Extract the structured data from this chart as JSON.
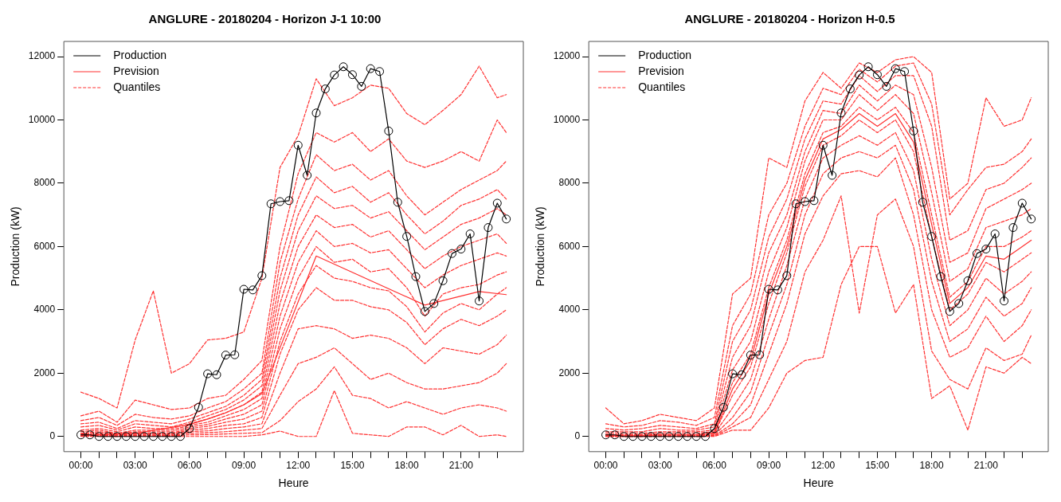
{
  "chart_data": [
    {
      "type": "line",
      "title": "ANGLURE - 20180204 - Horizon J-1 10:00",
      "xlabel": "Heure",
      "ylabel": "Production (kW)",
      "xlim": [
        -0.94,
        24.44
      ],
      "ylim": [
        -480,
        12480
      ],
      "yticks": [
        0,
        2000,
        4000,
        6000,
        8000,
        10000,
        12000
      ],
      "xticks": [
        {
          "value": 0,
          "label": "00:00"
        },
        {
          "value": 1,
          "label": null
        },
        {
          "value": 2,
          "label": null
        },
        {
          "value": 3,
          "label": "03:00"
        },
        {
          "value": 4,
          "label": null
        },
        {
          "value": 5,
          "label": null
        },
        {
          "value": 6,
          "label": "06:00"
        },
        {
          "value": 7,
          "label": null
        },
        {
          "value": 8,
          "label": null
        },
        {
          "value": 9,
          "label": "09:00"
        },
        {
          "value": 10,
          "label": null
        },
        {
          "value": 11,
          "label": null
        },
        {
          "value": 12,
          "label": "12:00"
        },
        {
          "value": 13,
          "label": null
        },
        {
          "value": 14,
          "label": null
        },
        {
          "value": 15,
          "label": "15:00"
        },
        {
          "value": 16,
          "label": null
        },
        {
          "value": 17,
          "label": null
        },
        {
          "value": 18,
          "label": "18:00"
        },
        {
          "value": 19,
          "label": null
        },
        {
          "value": 20,
          "label": null
        },
        {
          "value": 21,
          "label": "21:00"
        },
        {
          "value": 22,
          "label": null
        },
        {
          "value": 23,
          "label": null
        }
      ],
      "grid": false,
      "legend": "top left",
      "x": [
        0,
        1,
        2,
        3,
        4,
        5,
        6,
        7,
        8,
        9,
        10,
        11,
        12,
        13,
        14,
        15,
        16,
        17,
        18,
        19,
        20,
        21,
        22,
        23,
        23.5
      ],
      "series": [
        {
          "name": "Quantiles",
          "color": "#ff3030",
          "line_style": "dashed",
          "marker": "none",
          "values": [
            1400,
            1200,
            900,
            3050,
            4600,
            2000,
            2300,
            3050,
            3100,
            3300,
            5000,
            8500,
            9500,
            11300,
            10450,
            10700,
            11100,
            11000,
            10200,
            9850,
            10300,
            10800,
            11700,
            10700,
            10800
          ]
        },
        {
          "color": "#ff3030",
          "line_style": "dashed",
          "marker": "none",
          "values": [
            650,
            800,
            450,
            1150,
            1000,
            850,
            900,
            1200,
            1300,
            1800,
            2400,
            6000,
            8300,
            9600,
            9300,
            9600,
            9000,
            9400,
            8700,
            8500,
            8700,
            9000,
            8700,
            10000,
            9600
          ]
        },
        {
          "color": "#ff3030",
          "line_style": "dashed",
          "marker": "none",
          "values": [
            500,
            600,
            350,
            700,
            600,
            550,
            650,
            900,
            1100,
            1500,
            2000,
            5500,
            7500,
            8900,
            8400,
            8600,
            8100,
            8400,
            7600,
            7000,
            7400,
            7800,
            8100,
            8400,
            8700
          ]
        },
        {
          "color": "#ff3030",
          "line_style": "dashed",
          "marker": "none",
          "values": [
            400,
            450,
            250,
            500,
            450,
            400,
            550,
            750,
            950,
            1300,
            1800,
            5000,
            7000,
            8200,
            7700,
            7900,
            7400,
            7700,
            7000,
            6400,
            6800,
            7300,
            7500,
            7800,
            7500
          ]
        },
        {
          "color": "#ff3030",
          "line_style": "dashed",
          "marker": "none",
          "values": [
            300,
            350,
            200,
            400,
            350,
            300,
            450,
            650,
            850,
            1150,
            1600,
            4600,
            6500,
            7600,
            7200,
            7300,
            6900,
            7100,
            6500,
            5900,
            6300,
            6700,
            6900,
            7200,
            7000
          ]
        },
        {
          "color": "#ff3030",
          "line_style": "dashed",
          "marker": "none",
          "values": [
            200,
            250,
            150,
            300,
            250,
            250,
            400,
            550,
            750,
            1000,
            1400,
            4200,
            6000,
            7000,
            6600,
            6700,
            6300,
            6500,
            5900,
            5300,
            5700,
            6000,
            6200,
            6400,
            6100
          ]
        },
        {
          "color": "#ff3030",
          "line_style": "dashed",
          "marker": "none",
          "values": [
            150,
            200,
            100,
            200,
            200,
            200,
            350,
            450,
            650,
            850,
            1200,
            3800,
            5500,
            6500,
            6000,
            6100,
            5800,
            5900,
            5300,
            4700,
            5100,
            5400,
            5600,
            5800,
            5700
          ]
        },
        {
          "color": "#ff3030",
          "line_style": "dashed",
          "marker": "none",
          "values": [
            100,
            150,
            80,
            150,
            150,
            150,
            300,
            380,
            550,
            700,
            1000,
            3400,
            5000,
            6000,
            5500,
            5600,
            5200,
            5300,
            4700,
            3800,
            4500,
            4700,
            4800,
            5100,
            5200
          ]
        },
        {
          "color": "#ff3030",
          "line_style": "dashed",
          "marker": "none",
          "values": [
            80,
            100,
            60,
            100,
            100,
            100,
            250,
            320,
            450,
            550,
            800,
            3000,
            4500,
            5400,
            5000,
            4900,
            4700,
            4600,
            4100,
            3300,
            3900,
            4200,
            4000,
            4500,
            4700
          ]
        },
        {
          "color": "#ff3030",
          "line_style": "dashed",
          "marker": "none",
          "values": [
            50,
            80,
            40,
            80,
            80,
            80,
            200,
            250,
            350,
            400,
            600,
            2600,
            4000,
            4700,
            4300,
            4300,
            4100,
            4000,
            3600,
            2900,
            3400,
            3700,
            3500,
            3800,
            4000
          ]
        },
        {
          "color": "#ff3030",
          "line_style": "dashed",
          "marker": "none",
          "values": [
            30,
            50,
            20,
            50,
            50,
            50,
            150,
            180,
            250,
            300,
            400,
            2000,
            3400,
            3500,
            3400,
            3100,
            3200,
            3100,
            2800,
            2300,
            2800,
            2700,
            2600,
            2900,
            3200
          ]
        },
        {
          "color": "#ff3030",
          "line_style": "dashed",
          "marker": "none",
          "values": [
            20,
            30,
            10,
            30,
            30,
            30,
            100,
            120,
            150,
            200,
            250,
            1300,
            2300,
            2500,
            2800,
            2300,
            1800,
            2000,
            1700,
            1500,
            1500,
            1600,
            1700,
            2000,
            2300
          ]
        },
        {
          "color": "#ff3030",
          "line_style": "dashed",
          "marker": "none",
          "values": [
            10,
            20,
            0,
            20,
            20,
            20,
            50,
            60,
            80,
            100,
            120,
            500,
            1100,
            1500,
            2200,
            1300,
            1200,
            900,
            1100,
            900,
            700,
            900,
            1000,
            900,
            800
          ]
        },
        {
          "color": "#ff3030",
          "line_style": "dashed",
          "marker": "none",
          "values": [
            0,
            0,
            0,
            0,
            0,
            0,
            0,
            0,
            0,
            0,
            50,
            170,
            0,
            0,
            1450,
            100,
            50,
            0,
            300,
            300,
            50,
            350,
            0,
            50,
            0
          ]
        },
        {
          "name": "Prevision",
          "color": "#ff3030",
          "line_style": "solid",
          "marker": "none",
          "x": [
            0,
            3,
            6,
            7,
            8,
            9,
            10,
            13,
            19,
            22,
            23.5
          ],
          "values": [
            30,
            100,
            380,
            550,
            750,
            1000,
            1350,
            5700,
            4150,
            4580,
            4480
          ]
        },
        {
          "name": "Production",
          "color": "#000000",
          "line_style": "solid",
          "marker": "circle",
          "x": [
            0,
            0.5,
            1,
            1.5,
            2,
            2.5,
            3,
            3.5,
            4,
            4.5,
            5,
            5.5,
            6,
            6.5,
            7,
            7.5,
            8,
            8.5,
            9,
            9.5,
            10,
            10.5,
            11,
            11.5,
            12,
            12.5,
            13,
            13.5,
            14,
            14.5,
            15,
            15.5,
            16,
            16.5,
            17,
            17.5,
            18,
            18.5,
            19,
            19.5,
            20,
            20.5,
            21,
            21.5,
            22,
            22.5,
            23,
            23.5
          ],
          "values": [
            50,
            50,
            0,
            0,
            0,
            0,
            0,
            0,
            0,
            0,
            0,
            0,
            250,
            920,
            1980,
            1950,
            2570,
            2580,
            4650,
            4630,
            5080,
            7350,
            7420,
            7450,
            9200,
            8250,
            10220,
            10980,
            11420,
            11680,
            11430,
            11060,
            11620,
            11530,
            9650,
            7400,
            6320,
            5050,
            3950,
            4200,
            4920,
            5780,
            5920,
            6400,
            4280,
            6600,
            7370,
            6870
          ]
        }
      ]
    },
    {
      "type": "line",
      "title": "ANGLURE - 20180204 - Horizon H-0.5",
      "xlabel": "Heure",
      "ylabel": "Production (kW)",
      "xlim": [
        -0.94,
        24.44
      ],
      "ylim": [
        -480,
        12480
      ],
      "yticks": [
        0,
        2000,
        4000,
        6000,
        8000,
        10000,
        12000
      ],
      "xticks": [
        {
          "value": 0,
          "label": "00:00"
        },
        {
          "value": 1,
          "label": null
        },
        {
          "value": 2,
          "label": null
        },
        {
          "value": 3,
          "label": "03:00"
        },
        {
          "value": 4,
          "label": null
        },
        {
          "value": 5,
          "label": null
        },
        {
          "value": 6,
          "label": "06:00"
        },
        {
          "value": 7,
          "label": null
        },
        {
          "value": 8,
          "label": null
        },
        {
          "value": 9,
          "label": "09:00"
        },
        {
          "value": 10,
          "label": null
        },
        {
          "value": 11,
          "label": null
        },
        {
          "value": 12,
          "label": "12:00"
        },
        {
          "value": 13,
          "label": null
        },
        {
          "value": 14,
          "label": null
        },
        {
          "value": 15,
          "label": "15:00"
        },
        {
          "value": 16,
          "label": null
        },
        {
          "value": 17,
          "label": null
        },
        {
          "value": 18,
          "label": "18:00"
        },
        {
          "value": 19,
          "label": null
        },
        {
          "value": 20,
          "label": null
        },
        {
          "value": 21,
          "label": "21:00"
        },
        {
          "value": 22,
          "label": null
        },
        {
          "value": 23,
          "label": null
        }
      ],
      "grid": false,
      "legend": "top left",
      "x": [
        0,
        1,
        2,
        3,
        4,
        5,
        6,
        7,
        8,
        9,
        10,
        11,
        12,
        13,
        14,
        15,
        16,
        17,
        18,
        19,
        20,
        21,
        22,
        23,
        23.5
      ],
      "series": [
        {
          "name": "Quantiles",
          "color": "#ff3030",
          "line_style": "dashed",
          "marker": "none",
          "values": [
            900,
            400,
            500,
            700,
            600,
            500,
            900,
            4500,
            5000,
            8800,
            8500,
            10600,
            11500,
            11000,
            11800,
            11500,
            11900,
            12000,
            11500,
            7500,
            8000,
            10700,
            9800,
            10000,
            10700
          ]
        },
        {
          "color": "#ff3030",
          "line_style": "dashed",
          "marker": "none",
          "values": [
            400,
            300,
            350,
            500,
            450,
            350,
            600,
            3500,
            4500,
            7000,
            8000,
            9800,
            11000,
            10800,
            11600,
            11200,
            11700,
            11800,
            10500,
            7000,
            7800,
            8500,
            8600,
            9000,
            9400
          ]
        },
        {
          "color": "#ff3030",
          "line_style": "dashed",
          "marker": "none",
          "values": [
            250,
            200,
            250,
            350,
            300,
            250,
            400,
            3000,
            4000,
            6300,
            7500,
            9400,
            10600,
            10500,
            11400,
            10900,
            11400,
            11400,
            9800,
            6200,
            6500,
            7800,
            8000,
            8500,
            8800
          ]
        },
        {
          "color": "#ff3030",
          "line_style": "dashed",
          "marker": "none",
          "values": [
            150,
            150,
            150,
            250,
            200,
            200,
            300,
            2500,
            3500,
            5800,
            7000,
            9000,
            10300,
            10200,
            11100,
            10600,
            11100,
            10800,
            8500,
            5500,
            5800,
            7200,
            7500,
            7800,
            8000
          ]
        },
        {
          "color": "#ff3030",
          "line_style": "dashed",
          "marker": "none",
          "values": [
            100,
            100,
            100,
            150,
            150,
            150,
            200,
            2100,
            3000,
            5200,
            6600,
            8700,
            10000,
            10000,
            10800,
            10300,
            10800,
            10200,
            7700,
            4900,
            5300,
            6600,
            6800,
            7000,
            7200
          ]
        },
        {
          "color": "#ff3030",
          "line_style": "dashed",
          "marker": "none",
          "values": [
            60,
            60,
            60,
            100,
            100,
            100,
            150,
            1700,
            2600,
            4700,
            6200,
            8300,
            9600,
            9800,
            10400,
            10000,
            10400,
            9600,
            7000,
            4400,
            4900,
            6000,
            6000,
            6300,
            6500
          ]
        },
        {
          "color": "#ff3030",
          "line_style": "dashed",
          "marker": "none",
          "values": [
            40,
            40,
            40,
            60,
            60,
            60,
            100,
            1300,
            2200,
            4200,
            5800,
            7900,
            9200,
            9500,
            10000,
            9600,
            10000,
            9000,
            6300,
            4000,
            4500,
            5500,
            5200,
            5600,
            5800
          ]
        },
        {
          "color": "#ff3030",
          "line_style": "dashed",
          "marker": "none",
          "values": [
            20,
            20,
            20,
            40,
            40,
            40,
            80,
            900,
            1800,
            3700,
            5400,
            7500,
            8800,
            9200,
            9500,
            9200,
            9600,
            8400,
            5600,
            3500,
            4000,
            5000,
            4500,
            4900,
            5200
          ]
        },
        {
          "color": "#ff3030",
          "line_style": "dashed",
          "marker": "none",
          "values": [
            10,
            10,
            10,
            20,
            20,
            20,
            50,
            600,
            1400,
            3200,
            4800,
            7000,
            8300,
            8800,
            9000,
            8800,
            9200,
            7800,
            4900,
            3000,
            3400,
            4400,
            3800,
            4200,
            4700
          ]
        },
        {
          "color": "#ff3030",
          "line_style": "dashed",
          "marker": "none",
          "values": [
            0,
            0,
            0,
            10,
            10,
            10,
            30,
            400,
            1000,
            2600,
            4200,
            6400,
            7600,
            8300,
            8400,
            8200,
            8800,
            7000,
            4000,
            2500,
            2800,
            3800,
            3000,
            3500,
            4000
          ]
        },
        {
          "color": "#ff3030",
          "line_style": "dashed",
          "marker": "none",
          "values": [
            0,
            0,
            0,
            0,
            0,
            0,
            10,
            300,
            600,
            1800,
            3000,
            5200,
            6200,
            7600,
            3900,
            7000,
            7500,
            6000,
            2700,
            1800,
            1500,
            2800,
            2400,
            2600,
            3200
          ]
        },
        {
          "color": "#ff3030",
          "line_style": "dashed",
          "marker": "none",
          "values": [
            0,
            0,
            0,
            0,
            0,
            0,
            0,
            200,
            200,
            900,
            2000,
            2400,
            2500,
            4800,
            6000,
            6000,
            3900,
            4800,
            1200,
            1600,
            200,
            2200,
            2000,
            2500,
            2300
          ]
        },
        {
          "name": "Prevision",
          "color": "#ff3030",
          "line_style": "solid",
          "marker": "none",
          "values": [
            30,
            20,
            20,
            50,
            50,
            50,
            100,
            1500,
            2400,
            4500,
            6000,
            8100,
            9400,
            9700,
            10200,
            9800,
            10200,
            9300,
            6700,
            4200,
            4700,
            5700,
            5600,
            6000,
            6200
          ]
        },
        {
          "name": "Production",
          "color": "#000000",
          "line_style": "solid",
          "marker": "circle",
          "x": [
            0,
            0.5,
            1,
            1.5,
            2,
            2.5,
            3,
            3.5,
            4,
            4.5,
            5,
            5.5,
            6,
            6.5,
            7,
            7.5,
            8,
            8.5,
            9,
            9.5,
            10,
            10.5,
            11,
            11.5,
            12,
            12.5,
            13,
            13.5,
            14,
            14.5,
            15,
            15.5,
            16,
            16.5,
            17,
            17.5,
            18,
            18.5,
            19,
            19.5,
            20,
            20.5,
            21,
            21.5,
            22,
            22.5,
            23,
            23.5
          ],
          "values": [
            50,
            50,
            0,
            0,
            0,
            0,
            0,
            0,
            0,
            0,
            0,
            0,
            250,
            920,
            1980,
            1950,
            2570,
            2580,
            4650,
            4630,
            5080,
            7350,
            7420,
            7450,
            9200,
            8250,
            10220,
            10980,
            11420,
            11680,
            11430,
            11060,
            11620,
            11530,
            9650,
            7400,
            6320,
            5050,
            3950,
            4200,
            4920,
            5780,
            5920,
            6400,
            4280,
            6600,
            7370,
            6870
          ]
        }
      ]
    }
  ]
}
